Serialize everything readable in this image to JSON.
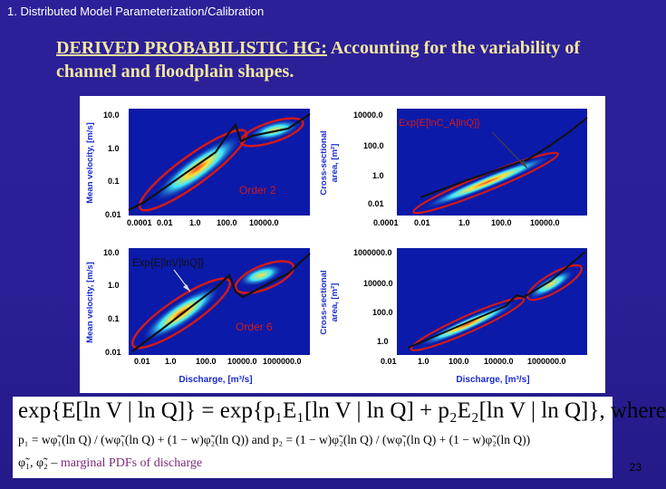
{
  "header": {
    "text": "1. Distributed Model Parameterization/Calibration"
  },
  "title": {
    "underlined": "DERIVED PROBABILISTIC HG:",
    "rest": " Accounting for the variability of channel and floodplain shapes."
  },
  "panels": {
    "top_left": {
      "ylabel": "Mean velocity, [m/s]",
      "yticks": [
        "10.0",
        "1.0",
        "0.1",
        "0.01"
      ],
      "xticks": [
        "0.0001",
        "0.01",
        "1.0",
        "100.0",
        "10000.0"
      ],
      "annotation": "Order 2"
    },
    "top_right": {
      "ylabel_line1": "Cross-sectional",
      "ylabel_line2": "area, [m²]",
      "yticks": [
        "10000.0",
        "100.0",
        "1.0",
        "0.01"
      ],
      "xticks": [
        "0.0001",
        "0.01",
        "1.0",
        "100.0",
        "10000.0"
      ],
      "annotation": "Exp{E[lnC_A|lnQ]}"
    },
    "bottom_left": {
      "ylabel": "Mean velocity, [m/s]",
      "yticks": [
        "10.0",
        "1.0",
        "0.1",
        "0.01"
      ],
      "xticks": [
        "0.01",
        "1.0",
        "100.0",
        "10000.0",
        "1000000.0"
      ],
      "xlabel": "Discharge, [m³/s]",
      "annotation": "Exp{E[lnV|lnQ]}",
      "annotation2": "Order 6"
    },
    "bottom_right": {
      "ylabel_line1": "Cross-sectional",
      "ylabel_line2": "area, [m²]",
      "yticks": [
        "1000000.0",
        "10000.0",
        "100.0",
        "1.0"
      ],
      "xticks": [
        "0.01",
        "1.0",
        "100.0",
        "10000.0",
        "1000000.0"
      ],
      "xlabel": "Discharge, [m³/s]"
    }
  },
  "equation": {
    "main": "exp{E[ln V | ln Q]} = exp{p₁E₁[ln V | ln Q] + p₂E₂[ln V | ln Q]}, where",
    "sub": "p₁ = wφ̃₁(ln Q) / (wφ̃₁(ln Q) + (1 − w)φ̃₂(ln Q))   and   p₂ = (1 − w)φ̃₂(ln Q) / (wφ̃₁(ln Q) + (1 − w)φ̃₂(ln Q))",
    "note_symbols": "φ̃₁, φ̃₂ –",
    "note_text": " marginal PDFs of discharge"
  },
  "page_number": "23",
  "colors": {
    "background": "#2a1f9a",
    "title": "#f2e6a0",
    "annotation_red": "#d11a1a",
    "plot_bg": "#0b1aa8"
  }
}
